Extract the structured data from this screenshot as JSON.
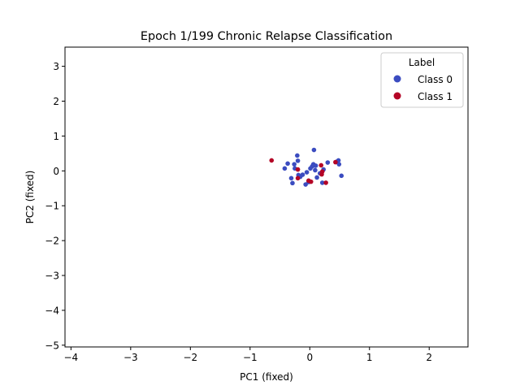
{
  "chart_data": {
    "type": "scatter",
    "title": "Epoch 1/199 Chronic Relapse Classification",
    "xlabel": "PC1 (fixed)",
    "ylabel": "PC2 (fixed)",
    "xlim": [
      -4.1,
      2.65
    ],
    "ylim": [
      -5.05,
      3.55
    ],
    "xticks": [
      -4,
      -3,
      -2,
      -1,
      0,
      1,
      2
    ],
    "yticks": [
      -5,
      -4,
      -3,
      -2,
      -1,
      0,
      1,
      2,
      3
    ],
    "xtick_labels": [
      "−4",
      "−3",
      "−2",
      "−1",
      "0",
      "1",
      "2"
    ],
    "ytick_labels": [
      "−5",
      "−4",
      "−3",
      "−2",
      "−1",
      "0",
      "1",
      "2",
      "3"
    ],
    "grid": false,
    "legend": {
      "title": "Label",
      "position": "top-right",
      "entries": [
        "Class 0",
        "Class 1"
      ]
    },
    "series": [
      {
        "name": "Class 0",
        "color": "#3b4cc0",
        "points": [
          [
            -0.42,
            0.07
          ],
          [
            -0.37,
            0.21
          ],
          [
            -0.31,
            -0.21
          ],
          [
            -0.29,
            -0.35
          ],
          [
            -0.26,
            0.19
          ],
          [
            -0.25,
            0.07
          ],
          [
            -0.21,
            0.44
          ],
          [
            -0.2,
            0.29
          ],
          [
            -0.19,
            -0.12
          ],
          [
            -0.16,
            -0.17
          ],
          [
            -0.12,
            -0.11
          ],
          [
            -0.07,
            -0.39
          ],
          [
            -0.05,
            -0.04
          ],
          [
            -0.02,
            -0.32
          ],
          [
            0.01,
            0.07
          ],
          [
            0.04,
            0.13
          ],
          [
            0.06,
            0.19
          ],
          [
            0.07,
            0.6
          ],
          [
            0.09,
            0.02
          ],
          [
            0.1,
            0.15
          ],
          [
            0.12,
            -0.19
          ],
          [
            0.17,
            -0.07
          ],
          [
            0.21,
            -0.34
          ],
          [
            0.23,
            0.04
          ],
          [
            0.3,
            0.24
          ],
          [
            0.46,
            0.27
          ],
          [
            0.48,
            0.3
          ],
          [
            0.49,
            0.19
          ],
          [
            0.53,
            -0.14
          ]
        ]
      },
      {
        "name": "Class 1",
        "color": "#b40426",
        "points": [
          [
            -0.64,
            0.3
          ],
          [
            -0.2,
            0.04
          ],
          [
            -0.2,
            -0.21
          ],
          [
            -0.02,
            -0.28
          ],
          [
            0.02,
            -0.31
          ],
          [
            0.19,
            0.16
          ],
          [
            0.2,
            -0.1
          ],
          [
            0.21,
            -0.02
          ],
          [
            0.27,
            -0.34
          ],
          [
            0.43,
            0.25
          ]
        ]
      }
    ]
  }
}
